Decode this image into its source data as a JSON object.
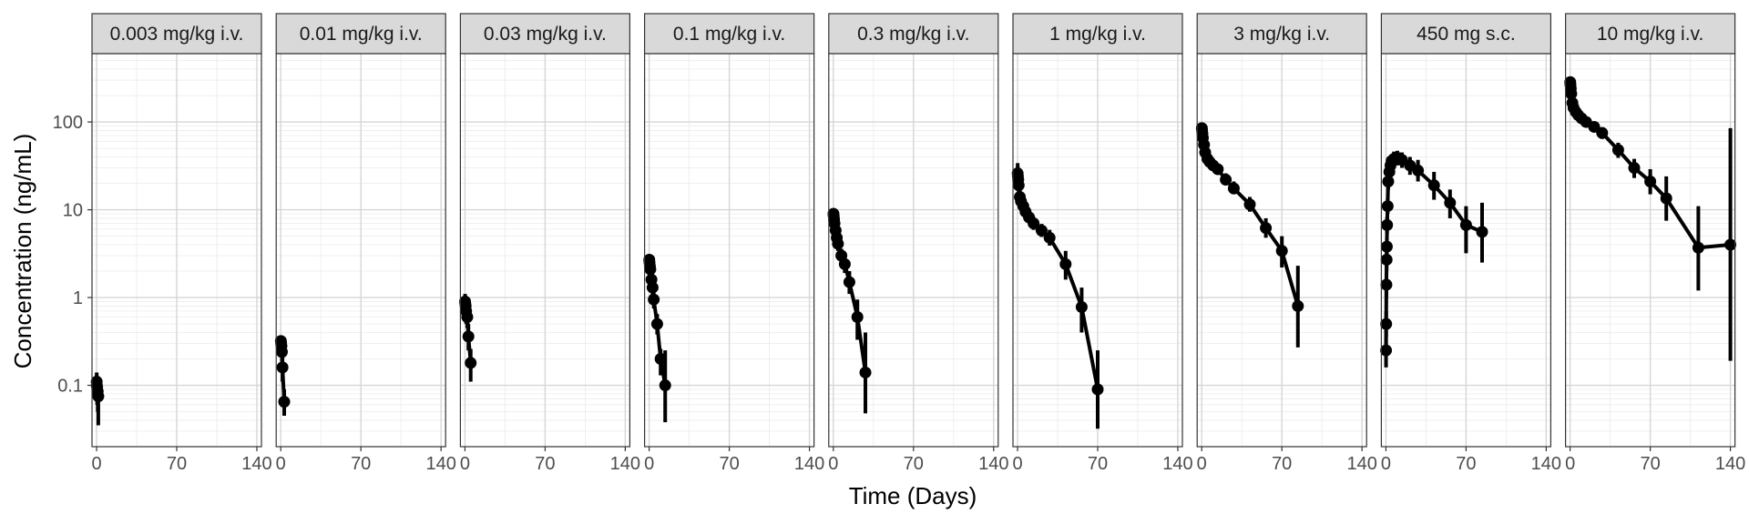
{
  "chart_data": {
    "type": "line",
    "xlabel": "Time (Days)",
    "ylabel": "Concentration (ng/mL)",
    "x_scale": "linear",
    "y_scale": "log10",
    "xlim": [
      -4,
      144
    ],
    "ylim": [
      0.02,
      600
    ],
    "x_ticks": [
      0,
      70,
      140
    ],
    "x_tick_labels": [
      "0",
      "70",
      "140"
    ],
    "y_ticks": [
      0.1,
      1,
      10,
      100
    ],
    "y_tick_labels": [
      "0.1",
      "1",
      "10",
      "100"
    ],
    "grid": true,
    "legend": "none",
    "panels": [
      {
        "label": "0.003 mg/kg i.v.",
        "points": [
          {
            "x": 0.1,
            "y": 0.11,
            "lo": 0.08,
            "hi": 0.14
          },
          {
            "x": 0.2,
            "y": 0.1,
            "lo": 0.07,
            "hi": 0.13
          },
          {
            "x": 0.5,
            "y": 0.095,
            "lo": 0.06,
            "hi": 0.12
          },
          {
            "x": 1,
            "y": 0.085,
            "lo": 0.05,
            "hi": 0.11
          },
          {
            "x": 1.5,
            "y": 0.075,
            "lo": 0.035,
            "hi": 0.1
          }
        ]
      },
      {
        "label": "0.01 mg/kg i.v.",
        "points": [
          {
            "x": 0.1,
            "y": 0.32,
            "lo": 0.27,
            "hi": 0.37
          },
          {
            "x": 0.3,
            "y": 0.3,
            "lo": 0.25,
            "hi": 0.35
          },
          {
            "x": 0.6,
            "y": 0.28,
            "lo": 0.22,
            "hi": 0.33
          },
          {
            "x": 1,
            "y": 0.24,
            "lo": 0.18,
            "hi": 0.3
          },
          {
            "x": 1.5,
            "y": 0.16,
            "lo": 0.11,
            "hi": 0.21
          },
          {
            "x": 3,
            "y": 0.065,
            "lo": 0.045,
            "hi": 0.09
          }
        ]
      },
      {
        "label": "0.03 mg/kg i.v.",
        "points": [
          {
            "x": 0.1,
            "y": 0.9,
            "lo": 0.7,
            "hi": 1.1
          },
          {
            "x": 0.3,
            "y": 0.85,
            "lo": 0.65,
            "hi": 1.05
          },
          {
            "x": 0.6,
            "y": 0.8,
            "lo": 0.6,
            "hi": 1.0
          },
          {
            "x": 1,
            "y": 0.7,
            "lo": 0.5,
            "hi": 0.9
          },
          {
            "x": 2,
            "y": 0.6,
            "lo": 0.45,
            "hi": 0.8
          },
          {
            "x": 3,
            "y": 0.36,
            "lo": 0.25,
            "hi": 0.5
          },
          {
            "x": 5,
            "y": 0.18,
            "lo": 0.11,
            "hi": 0.26
          }
        ]
      },
      {
        "label": "0.1 mg/kg i.v.",
        "points": [
          {
            "x": 0.1,
            "y": 2.7,
            "lo": 2.3,
            "hi": 3.1
          },
          {
            "x": 0.3,
            "y": 2.5,
            "lo": 2.1,
            "hi": 2.9
          },
          {
            "x": 0.6,
            "y": 2.3,
            "lo": 1.9,
            "hi": 2.7
          },
          {
            "x": 1,
            "y": 2.1,
            "lo": 1.7,
            "hi": 2.5
          },
          {
            "x": 2,
            "y": 1.6,
            "lo": 1.3,
            "hi": 1.9
          },
          {
            "x": 3,
            "y": 1.3,
            "lo": 1.0,
            "hi": 1.6
          },
          {
            "x": 4,
            "y": 0.95,
            "lo": 0.75,
            "hi": 1.2
          },
          {
            "x": 7,
            "y": 0.5,
            "lo": 0.38,
            "hi": 0.65
          },
          {
            "x": 10,
            "y": 0.2,
            "lo": 0.13,
            "hi": 0.26
          },
          {
            "x": 14,
            "y": 0.1,
            "lo": 0.038,
            "hi": 0.25
          }
        ]
      },
      {
        "label": "0.3 mg/kg i.v.",
        "points": [
          {
            "x": 0.1,
            "y": 9.0,
            "lo": 7.6,
            "hi": 10.2
          },
          {
            "x": 0.3,
            "y": 8.5,
            "lo": 7.2,
            "hi": 9.8
          },
          {
            "x": 0.6,
            "y": 7.8,
            "lo": 6.6,
            "hi": 9.0
          },
          {
            "x": 1,
            "y": 7.0,
            "lo": 5.9,
            "hi": 8.2
          },
          {
            "x": 2,
            "y": 5.8,
            "lo": 4.9,
            "hi": 6.9
          },
          {
            "x": 3,
            "y": 4.8,
            "lo": 4.0,
            "hi": 5.7
          },
          {
            "x": 4,
            "y": 4.1,
            "lo": 3.4,
            "hi": 4.9
          },
          {
            "x": 7,
            "y": 3.0,
            "lo": 2.5,
            "hi": 3.6
          },
          {
            "x": 10,
            "y": 2.4,
            "lo": 1.9,
            "hi": 2.9
          },
          {
            "x": 14,
            "y": 1.5,
            "lo": 1.1,
            "hi": 2.0
          },
          {
            "x": 21,
            "y": 0.6,
            "lo": 0.33,
            "hi": 0.95
          },
          {
            "x": 28,
            "y": 0.14,
            "lo": 0.048,
            "hi": 0.4
          }
        ]
      },
      {
        "label": "1 mg/kg i.v.",
        "points": [
          {
            "x": 0.1,
            "y": 26,
            "lo": 20,
            "hi": 34
          },
          {
            "x": 0.3,
            "y": 24,
            "lo": 19,
            "hi": 31
          },
          {
            "x": 0.6,
            "y": 22,
            "lo": 17,
            "hi": 28
          },
          {
            "x": 1,
            "y": 19,
            "lo": 15,
            "hi": 24
          },
          {
            "x": 2,
            "y": 14,
            "lo": 11.5,
            "hi": 17
          },
          {
            "x": 3,
            "y": 12.5,
            "lo": 10.5,
            "hi": 15
          },
          {
            "x": 5,
            "y": 11,
            "lo": 9.2,
            "hi": 13
          },
          {
            "x": 7,
            "y": 9.5,
            "lo": 8,
            "hi": 11.2
          },
          {
            "x": 10,
            "y": 8.2,
            "lo": 7,
            "hi": 9.6
          },
          {
            "x": 14,
            "y": 7.0,
            "lo": 5.9,
            "hi": 8.3
          },
          {
            "x": 21,
            "y": 5.8,
            "lo": 4.9,
            "hi": 6.9
          },
          {
            "x": 28,
            "y": 4.8,
            "lo": 3.9,
            "hi": 5.9
          },
          {
            "x": 42,
            "y": 2.4,
            "lo": 1.6,
            "hi": 3.4
          },
          {
            "x": 56,
            "y": 0.78,
            "lo": 0.4,
            "hi": 1.3
          },
          {
            "x": 70,
            "y": 0.09,
            "lo": 0.032,
            "hi": 0.25
          }
        ]
      },
      {
        "label": "3 mg/kg i.v.",
        "points": [
          {
            "x": 0.1,
            "y": 85,
            "lo": 74,
            "hi": 96
          },
          {
            "x": 0.3,
            "y": 80,
            "lo": 70,
            "hi": 91
          },
          {
            "x": 0.6,
            "y": 74,
            "lo": 64,
            "hi": 84
          },
          {
            "x": 1,
            "y": 66,
            "lo": 57,
            "hi": 76
          },
          {
            "x": 2,
            "y": 55,
            "lo": 47,
            "hi": 64
          },
          {
            "x": 3,
            "y": 45,
            "lo": 39,
            "hi": 52
          },
          {
            "x": 5,
            "y": 38,
            "lo": 33,
            "hi": 44
          },
          {
            "x": 7,
            "y": 35,
            "lo": 30,
            "hi": 40
          },
          {
            "x": 10,
            "y": 32,
            "lo": 28,
            "hi": 37
          },
          {
            "x": 14,
            "y": 29,
            "lo": 25,
            "hi": 33
          },
          {
            "x": 21,
            "y": 22,
            "lo": 19,
            "hi": 26
          },
          {
            "x": 28,
            "y": 17.5,
            "lo": 15,
            "hi": 21
          },
          {
            "x": 42,
            "y": 11.5,
            "lo": 9.5,
            "hi": 14
          },
          {
            "x": 56,
            "y": 6.2,
            "lo": 4.8,
            "hi": 8
          },
          {
            "x": 70,
            "y": 3.4,
            "lo": 2.2,
            "hi": 5
          },
          {
            "x": 84,
            "y": 0.8,
            "lo": 0.27,
            "hi": 2.3
          }
        ]
      },
      {
        "label": "450 mg s.c.",
        "points": [
          {
            "x": 0.1,
            "y": 0.25,
            "lo": 0.16,
            "hi": 0.35
          },
          {
            "x": 0.2,
            "y": 0.5,
            "lo": 0.35,
            "hi": 0.7
          },
          {
            "x": 0.4,
            "y": 1.4,
            "lo": 1.0,
            "hi": 1.9
          },
          {
            "x": 0.6,
            "y": 2.7,
            "lo": 2.0,
            "hi": 3.5
          },
          {
            "x": 0.8,
            "y": 3.8,
            "lo": 2.9,
            "hi": 4.8
          },
          {
            "x": 1,
            "y": 6.7,
            "lo": 5.3,
            "hi": 8.3
          },
          {
            "x": 1.5,
            "y": 11,
            "lo": 9,
            "hi": 13.5
          },
          {
            "x": 2,
            "y": 21,
            "lo": 17,
            "hi": 26
          },
          {
            "x": 3,
            "y": 27,
            "lo": 22,
            "hi": 33
          },
          {
            "x": 4,
            "y": 32,
            "lo": 26,
            "hi": 39
          },
          {
            "x": 5,
            "y": 36,
            "lo": 30,
            "hi": 43
          },
          {
            "x": 7,
            "y": 38,
            "lo": 32,
            "hi": 46
          },
          {
            "x": 10,
            "y": 39,
            "lo": 32,
            "hi": 47
          },
          {
            "x": 14,
            "y": 37,
            "lo": 30,
            "hi": 45
          },
          {
            "x": 21,
            "y": 32,
            "lo": 25,
            "hi": 40
          },
          {
            "x": 28,
            "y": 28,
            "lo": 21,
            "hi": 37
          },
          {
            "x": 42,
            "y": 19,
            "lo": 13,
            "hi": 27
          },
          {
            "x": 56,
            "y": 12,
            "lo": 8,
            "hi": 17
          },
          {
            "x": 70,
            "y": 6.7,
            "lo": 3.2,
            "hi": 11
          },
          {
            "x": 84,
            "y": 5.6,
            "lo": 2.5,
            "hi": 12
          }
        ]
      },
      {
        "label": "10 mg/kg i.v.",
        "points": [
          {
            "x": 0.1,
            "y": 285,
            "lo": 255,
            "hi": 315
          },
          {
            "x": 0.3,
            "y": 265,
            "lo": 238,
            "hi": 292
          },
          {
            "x": 0.6,
            "y": 240,
            "lo": 215,
            "hi": 265
          },
          {
            "x": 1,
            "y": 210,
            "lo": 188,
            "hi": 232
          },
          {
            "x": 2,
            "y": 165,
            "lo": 148,
            "hi": 183
          },
          {
            "x": 3,
            "y": 145,
            "lo": 130,
            "hi": 161
          },
          {
            "x": 5,
            "y": 130,
            "lo": 117,
            "hi": 144
          },
          {
            "x": 7,
            "y": 120,
            "lo": 108,
            "hi": 133
          },
          {
            "x": 10,
            "y": 110,
            "lo": 98,
            "hi": 123
          },
          {
            "x": 14,
            "y": 100,
            "lo": 88,
            "hi": 113
          },
          {
            "x": 21,
            "y": 88,
            "lo": 76,
            "hi": 101
          },
          {
            "x": 28,
            "y": 75,
            "lo": 64,
            "hi": 87
          },
          {
            "x": 42,
            "y": 48,
            "lo": 39,
            "hi": 58
          },
          {
            "x": 56,
            "y": 30,
            "lo": 23,
            "hi": 38
          },
          {
            "x": 70,
            "y": 21,
            "lo": 15,
            "hi": 29
          },
          {
            "x": 84,
            "y": 13.5,
            "lo": 7.5,
            "hi": 24
          },
          {
            "x": 112,
            "y": 3.7,
            "lo": 1.2,
            "hi": 11
          },
          {
            "x": 140,
            "y": 4.0,
            "lo": 0.19,
            "hi": 85
          }
        ]
      }
    ]
  }
}
